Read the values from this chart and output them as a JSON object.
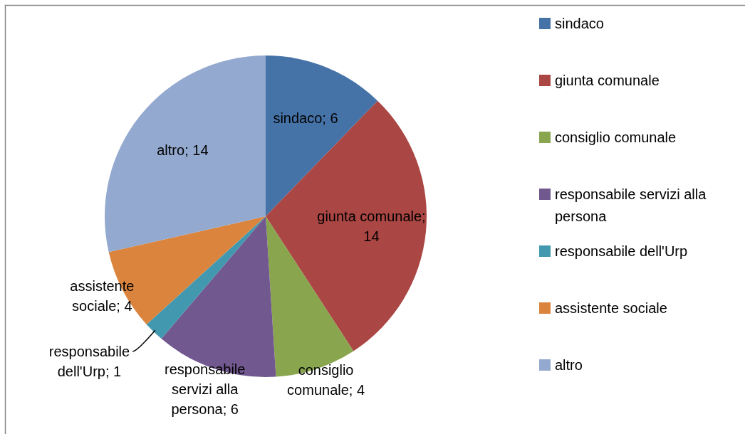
{
  "chart_data": {
    "type": "pie",
    "categories": [
      "sindaco",
      "giunta comunale",
      "consiglio comunale",
      "responsabile servizi alla persona",
      "responsabile dell'Urp",
      "assistente sociale",
      "altro"
    ],
    "values": [
      6,
      14,
      4,
      6,
      1,
      4,
      14
    ],
    "colors": [
      "#4572a7",
      "#aa4643",
      "#89a54e",
      "#71588f",
      "#4198af",
      "#db843d",
      "#93a9cf"
    ],
    "value_labels": [
      "sindaco; 6",
      "giunta comunale; 14",
      "consiglio comunale; 4",
      "responsabile servizi alla persona; 6",
      "responsabile dell'Urp; 1",
      "assistente sociale; 4",
      "altro; 14"
    ],
    "legend": "right"
  }
}
